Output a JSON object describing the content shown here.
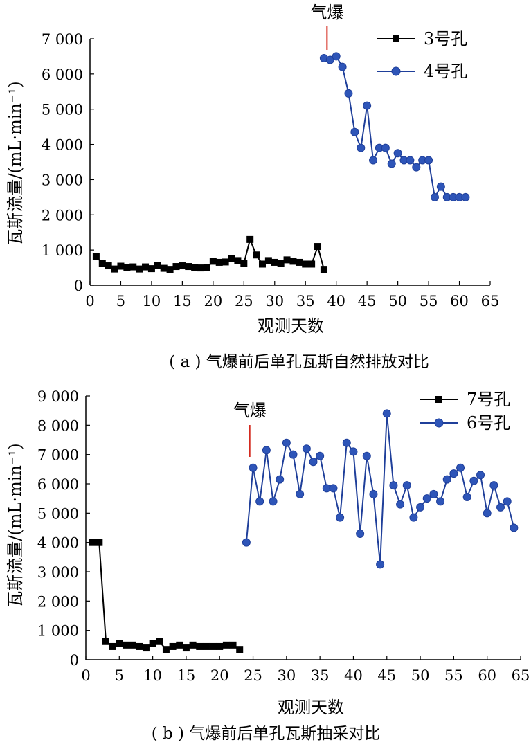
{
  "chart_data": [
    {
      "type": "line",
      "caption": "( a ) 气爆前后单孔瓦斯自然排放对比",
      "xlabel": "观测天数",
      "ylabel": "瓦斯流量/(mL·min⁻¹)",
      "xlim": [
        0,
        65
      ],
      "ylim": [
        0,
        7000
      ],
      "xticks": [
        0,
        5,
        10,
        15,
        20,
        25,
        30,
        35,
        40,
        45,
        50,
        55,
        60,
        65
      ],
      "yticks": [
        0,
        1000,
        2000,
        3000,
        4000,
        5000,
        6000,
        7000
      ],
      "xtick_labels": [
        "0",
        "5",
        "10",
        "15",
        "20",
        "25",
        "30",
        "35",
        "40",
        "45",
        "50",
        "55",
        "60",
        "65"
      ],
      "ytick_labels": [
        "0",
        "1 000",
        "2 000",
        "3 000",
        "4 000",
        "5 000",
        "6 000",
        "7 000"
      ],
      "grid": false,
      "legend_position": "top-right",
      "annotation": {
        "text": "气爆",
        "x": 38.5
      },
      "series": [
        {
          "name": "3号孔",
          "color": "#000000",
          "marker": "square",
          "x": [
            1,
            2,
            3,
            4,
            5,
            6,
            7,
            8,
            9,
            10,
            11,
            12,
            13,
            14,
            15,
            16,
            17,
            18,
            19,
            20,
            21,
            22,
            23,
            24,
            25,
            26,
            27,
            28,
            29,
            30,
            31,
            32,
            33,
            34,
            35,
            36,
            37,
            38
          ],
          "y": [
            820,
            620,
            550,
            460,
            540,
            510,
            520,
            460,
            520,
            470,
            560,
            480,
            450,
            530,
            550,
            530,
            500,
            490,
            500,
            680,
            650,
            660,
            750,
            700,
            620,
            1300,
            860,
            600,
            700,
            650,
            620,
            720,
            680,
            650,
            600,
            600,
            1100,
            450
          ]
        },
        {
          "name": "4号孔",
          "color": "#1f3f9a",
          "marker": "circle",
          "x": [
            38,
            39,
            40,
            41,
            42,
            43,
            44,
            45,
            46,
            47,
            48,
            49,
            50,
            51,
            52,
            53,
            54,
            55,
            56,
            57,
            58,
            59,
            60,
            61
          ],
          "y": [
            6450,
            6400,
            6500,
            6200,
            5450,
            4350,
            3900,
            5100,
            3550,
            3900,
            3900,
            3450,
            3750,
            3550,
            3550,
            3350,
            3550,
            3550,
            2500,
            2800,
            2500,
            2500,
            2500,
            2500
          ]
        }
      ]
    },
    {
      "type": "line",
      "caption": "( b ) 气爆前后单孔瓦斯抽采对比",
      "xlabel": "观测天数",
      "ylabel": "瓦斯流量/(mL·min⁻¹)",
      "xlim": [
        0,
        65
      ],
      "ylim": [
        0,
        9000
      ],
      "xticks": [
        0,
        5,
        10,
        15,
        20,
        25,
        30,
        35,
        40,
        45,
        50,
        55,
        60,
        65
      ],
      "yticks": [
        0,
        1000,
        2000,
        3000,
        4000,
        5000,
        6000,
        7000,
        8000,
        9000
      ],
      "xtick_labels": [
        "0",
        "5",
        "10",
        "15",
        "20",
        "25",
        "30",
        "35",
        "40",
        "45",
        "50",
        "55",
        "60",
        "65"
      ],
      "ytick_labels": [
        "0",
        "1 000",
        "2 000",
        "3 000",
        "4 000",
        "5 000",
        "6 000",
        "7 000",
        "8 000",
        "9 000"
      ],
      "grid": false,
      "legend_position": "top-right",
      "annotation": {
        "text": "气爆",
        "x": 24.5
      },
      "series": [
        {
          "name": "7号孔",
          "color": "#000000",
          "marker": "square",
          "x": [
            1,
            2,
            3,
            4,
            5,
            6,
            7,
            8,
            9,
            10,
            11,
            12,
            13,
            14,
            15,
            16,
            17,
            18,
            19,
            20,
            21,
            22,
            23
          ],
          "y": [
            4000,
            4000,
            620,
            450,
            550,
            500,
            500,
            450,
            400,
            550,
            620,
            350,
            450,
            500,
            400,
            500,
            450,
            450,
            450,
            450,
            500,
            500,
            350
          ]
        },
        {
          "name": "6号孔",
          "color": "#1f3f9a",
          "marker": "circle",
          "x": [
            24,
            25,
            26,
            27,
            28,
            29,
            30,
            31,
            32,
            33,
            34,
            35,
            36,
            37,
            38,
            39,
            40,
            41,
            42,
            43,
            44,
            45,
            46,
            47,
            48,
            49,
            50,
            51,
            52,
            53,
            54,
            55,
            56,
            57,
            58,
            59,
            60,
            61,
            62,
            63,
            64
          ],
          "y": [
            4000,
            6550,
            5400,
            7150,
            5400,
            6150,
            7400,
            7000,
            5650,
            7200,
            6750,
            6950,
            5850,
            5850,
            4850,
            7400,
            7100,
            4300,
            6950,
            5650,
            3250,
            8400,
            5950,
            5300,
            5950,
            4850,
            5200,
            5500,
            5650,
            5400,
            6150,
            6350,
            6550,
            5550,
            6100,
            6300,
            5000,
            5950,
            5200,
            5400,
            4500
          ]
        }
      ]
    }
  ]
}
